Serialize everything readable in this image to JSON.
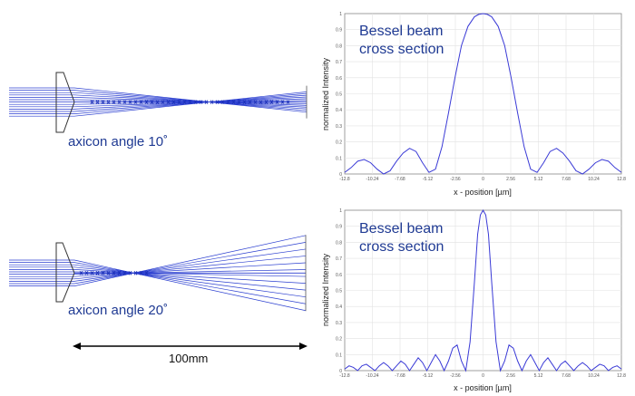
{
  "optics": {
    "top_caption": "axicon angle 10˚",
    "bottom_caption": "axicon angle 20˚",
    "scale_label": "100mm",
    "ray_color": "#2b3fd0"
  },
  "chart_data": [
    {
      "type": "line",
      "annotation_line1": "Bessel beam",
      "annotation_line2": "cross section",
      "xlabel": "x - position [µm]",
      "ylabel": "normalized Intensity",
      "xlim": [
        -12.8,
        12.8
      ],
      "ylim": [
        0,
        1
      ],
      "grid": true,
      "x_ticks": [
        "-12.8",
        "-10.24",
        "-7.68",
        "-5.12",
        "-2.56",
        "0",
        "2.56",
        "5.12",
        "7.68",
        "10.24",
        "12.8"
      ],
      "y_ticks": [
        "0",
        "0.1",
        "0.2",
        "0.3",
        "0.4",
        "0.5",
        "0.6",
        "0.7",
        "0.8",
        "0.9",
        "1"
      ],
      "series_color": "#3a3ad6",
      "series": [
        {
          "x": [
            -12.8,
            -12.2,
            -11.6,
            -11.0,
            -10.4,
            -9.8,
            -9.2,
            -8.6,
            -8.0,
            -7.4,
            -6.8,
            -6.2,
            -5.6,
            -5.0,
            -4.4,
            -3.8,
            -3.2,
            -2.6,
            -2.0,
            -1.4,
            -0.8,
            -0.4,
            0,
            0.4,
            0.8,
            1.4,
            2.0,
            2.6,
            3.2,
            3.8,
            4.4,
            5.0,
            5.6,
            6.2,
            6.8,
            7.4,
            8.0,
            8.6,
            9.2,
            9.8,
            10.4,
            11.0,
            11.6,
            12.2,
            12.8
          ],
          "y": [
            0.01,
            0.04,
            0.08,
            0.09,
            0.07,
            0.03,
            0.0,
            0.02,
            0.08,
            0.13,
            0.16,
            0.14,
            0.07,
            0.01,
            0.03,
            0.17,
            0.38,
            0.6,
            0.8,
            0.92,
            0.98,
            0.995,
            1.0,
            0.995,
            0.98,
            0.92,
            0.8,
            0.6,
            0.38,
            0.17,
            0.03,
            0.01,
            0.07,
            0.14,
            0.16,
            0.13,
            0.08,
            0.02,
            0.0,
            0.03,
            0.07,
            0.09,
            0.08,
            0.04,
            0.01
          ]
        }
      ]
    },
    {
      "type": "line",
      "annotation_line1": "Bessel beam",
      "annotation_line2": "cross section",
      "xlabel": "x - position [µm]",
      "ylabel": "normalized Intensity",
      "xlim": [
        -12.8,
        12.8
      ],
      "ylim": [
        0,
        1
      ],
      "grid": true,
      "x_ticks": [
        "-12.8",
        "-10.24",
        "-7.68",
        "-5.12",
        "-2.56",
        "0",
        "2.56",
        "5.12",
        "7.68",
        "10.24",
        "12.8"
      ],
      "y_ticks": [
        "0",
        "0.1",
        "0.2",
        "0.3",
        "0.4",
        "0.5",
        "0.6",
        "0.7",
        "0.8",
        "0.9",
        "1"
      ],
      "series_color": "#3a3ad6",
      "series": [
        {
          "x": [
            -12.8,
            -12.4,
            -12.0,
            -11.6,
            -11.2,
            -10.8,
            -10.4,
            -10.0,
            -9.6,
            -9.2,
            -8.8,
            -8.4,
            -8.0,
            -7.6,
            -7.2,
            -6.8,
            -6.4,
            -6.0,
            -5.6,
            -5.2,
            -4.8,
            -4.4,
            -4.0,
            -3.6,
            -3.2,
            -2.8,
            -2.4,
            -2.0,
            -1.6,
            -1.2,
            -0.8,
            -0.5,
            -0.25,
            0,
            0.25,
            0.5,
            0.8,
            1.2,
            1.6,
            2.0,
            2.4,
            2.8,
            3.2,
            3.6,
            4.0,
            4.4,
            4.8,
            5.2,
            5.6,
            6.0,
            6.4,
            6.8,
            7.2,
            7.6,
            8.0,
            8.4,
            8.8,
            9.2,
            9.6,
            10.0,
            10.4,
            10.8,
            11.2,
            11.6,
            12.0,
            12.4,
            12.8
          ],
          "y": [
            0.01,
            0.03,
            0.02,
            0.0,
            0.03,
            0.04,
            0.02,
            0.0,
            0.03,
            0.05,
            0.03,
            0.0,
            0.03,
            0.06,
            0.04,
            0.0,
            0.04,
            0.08,
            0.05,
            0.0,
            0.05,
            0.1,
            0.06,
            0.0,
            0.06,
            0.14,
            0.16,
            0.06,
            0.0,
            0.18,
            0.55,
            0.85,
            0.97,
            1.0,
            0.97,
            0.85,
            0.55,
            0.18,
            0.0,
            0.06,
            0.16,
            0.14,
            0.06,
            0.0,
            0.06,
            0.1,
            0.05,
            0.0,
            0.05,
            0.08,
            0.04,
            0.0,
            0.04,
            0.06,
            0.03,
            0.0,
            0.03,
            0.05,
            0.03,
            0.0,
            0.02,
            0.04,
            0.03,
            0.0,
            0.02,
            0.03,
            0.01
          ]
        }
      ]
    }
  ]
}
